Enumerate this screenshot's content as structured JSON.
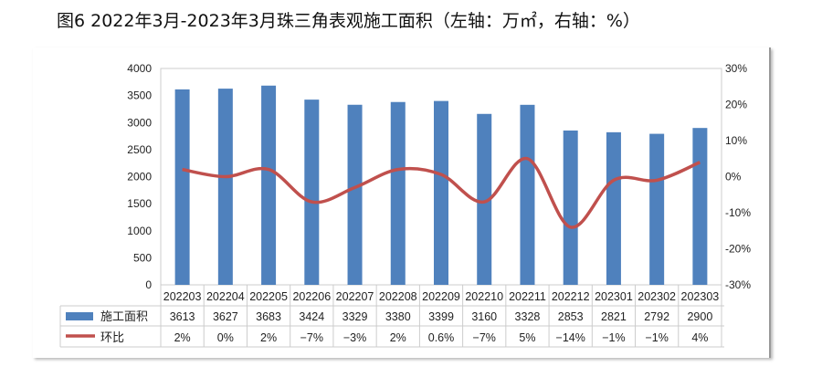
{
  "title": "图6 2022年3月-2023年3月珠三角表观施工面积（左轴：万㎡，右轴：%）",
  "chart_data": {
    "type": "bar+line",
    "categories": [
      "202203",
      "202204",
      "202205",
      "202206",
      "202207",
      "202208",
      "202209",
      "202210",
      "202211",
      "202212",
      "202301",
      "202302",
      "202303"
    ],
    "series": [
      {
        "name": "施工面积",
        "type": "bar",
        "axis": "left",
        "color": "#4f81bd",
        "values": [
          3613,
          3627,
          3683,
          3424,
          3329,
          3380,
          3399,
          3160,
          3328,
          2853,
          2821,
          2792,
          2900
        ]
      },
      {
        "name": "环比",
        "type": "line",
        "axis": "right",
        "color": "#c0504d",
        "values": [
          2,
          0,
          2,
          -7,
          -3,
          2,
          0.6,
          -7,
          5,
          -14,
          -1,
          -1,
          4
        ],
        "labels": [
          "2%",
          "0%",
          "2%",
          "−7%",
          "−3%",
          "2%",
          "0.6%",
          "−7%",
          "5%",
          "−14%",
          "−1%",
          "−1%",
          "4%"
        ]
      }
    ],
    "left_axis": {
      "ylim": [
        0,
        4000
      ],
      "ticks": [
        "0",
        "500",
        "1000",
        "1500",
        "2000",
        "2500",
        "3000",
        "3500",
        "4000"
      ]
    },
    "right_axis": {
      "ylim": [
        -30,
        30
      ],
      "ticks": [
        "-30%",
        "-20%",
        "-10%",
        "0%",
        "10%",
        "20%",
        "30%"
      ]
    },
    "grid": false,
    "legend": "data-table"
  }
}
